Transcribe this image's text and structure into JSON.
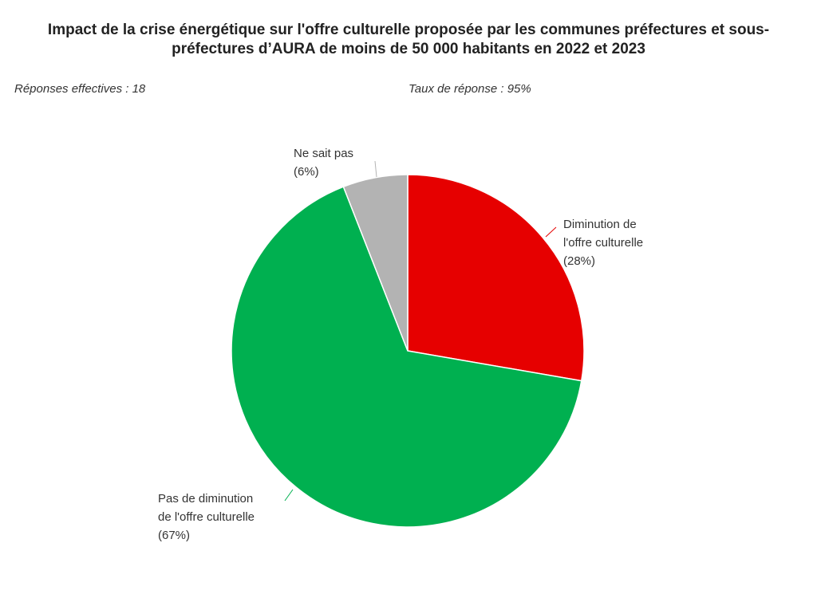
{
  "chart_data": {
    "type": "pie",
    "title": "Impact de la crise énergétique sur l'offre culturelle proposée par les communes préfectures et sous-préfectures d’AURA de moins de 50 000 habitants en 2022 et 2023",
    "annotations": [
      "Réponses effectives : 18",
      "Taux de réponse : 95%"
    ],
    "categories": [
      "Diminution de l'offre culturelle",
      "Pas de diminution de l'offre culturelle",
      "Ne sait pas"
    ],
    "values": [
      28,
      67,
      6
    ],
    "value_labels": [
      "(28%)",
      "(67%)",
      "(6%)"
    ],
    "colors": [
      "#e60000",
      "#00b050",
      "#b3b3b3"
    ]
  }
}
